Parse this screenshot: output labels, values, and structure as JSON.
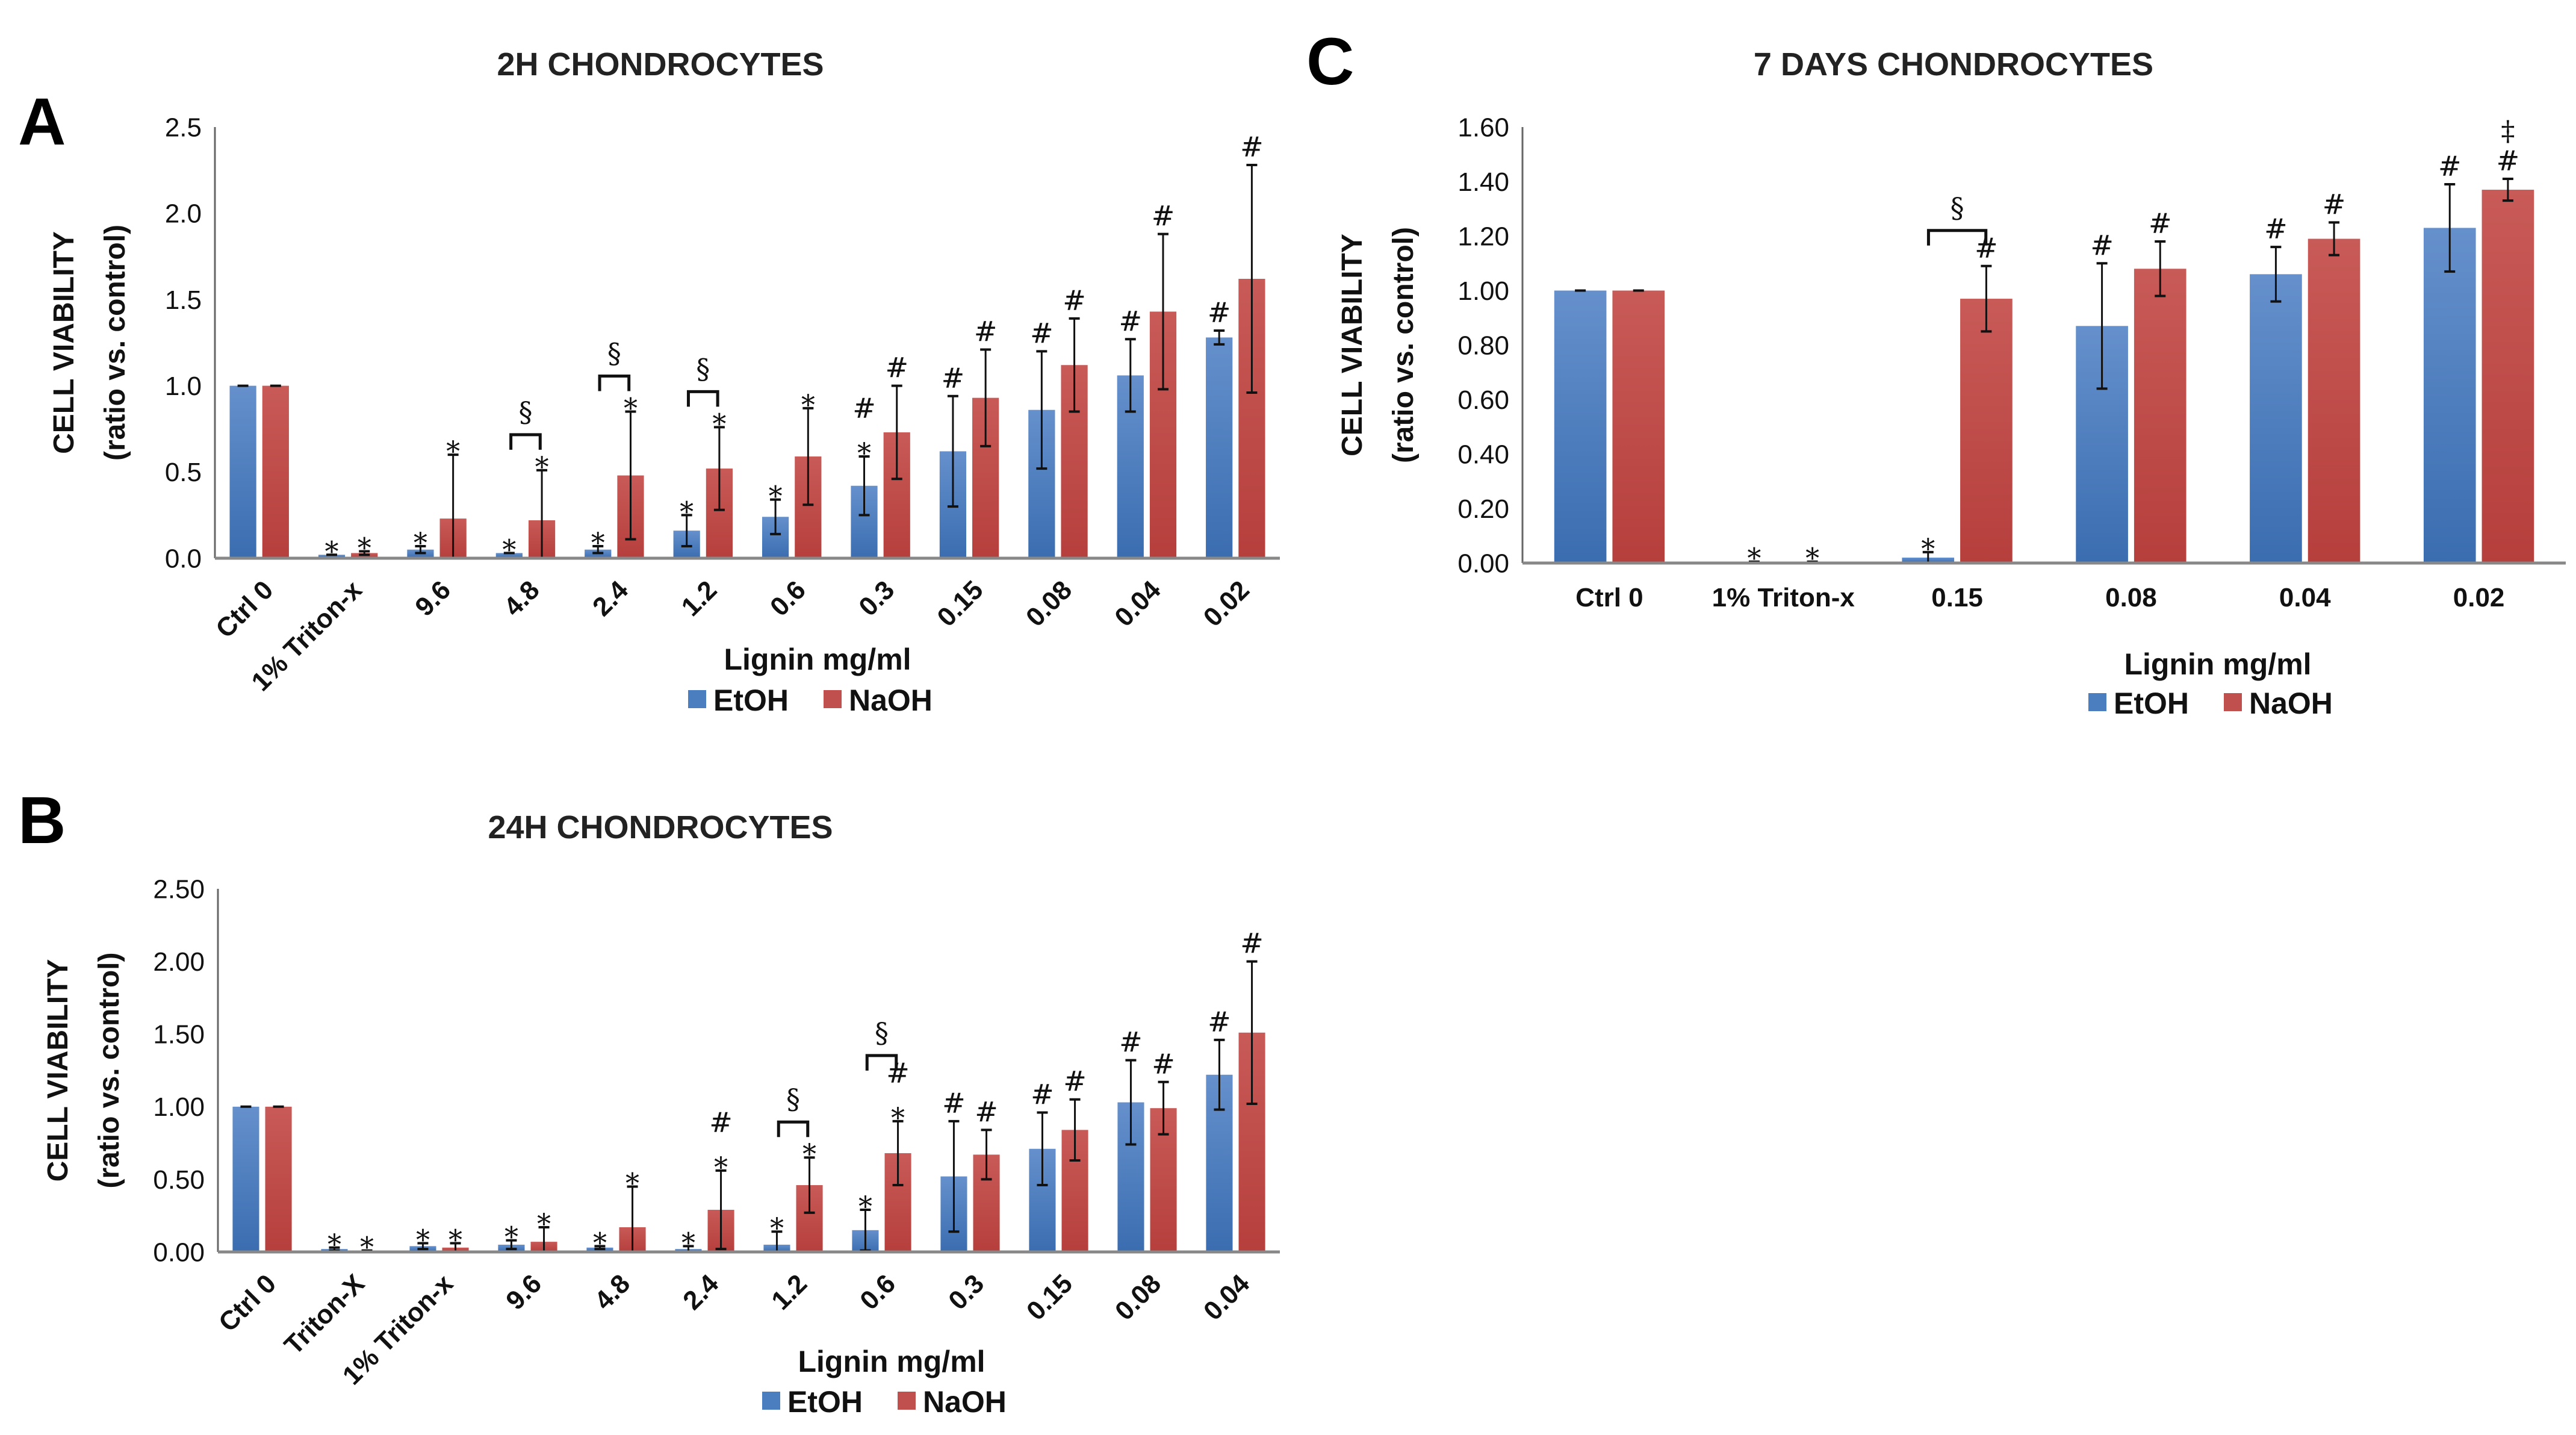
{
  "legend": {
    "etoh": "EtOH",
    "naoh": "NaOH"
  },
  "colors": {
    "etoh": "#4a7ebf",
    "naoh": "#c0504d"
  },
  "chart_data": [
    {
      "panel": "A",
      "type": "bar",
      "title": "2H CHONDROCYTES",
      "ylabel": [
        "CELL VIABILITY",
        "(ratio vs. control)"
      ],
      "xlabel": "Lignin mg/ml",
      "ylim": [
        0,
        2.5
      ],
      "yticks": [
        "0.0",
        "0.5",
        "1.0",
        "1.5",
        "2.0",
        "2.5"
      ],
      "rotate_categories": true,
      "categories": [
        "Ctrl 0",
        "1% Triton-x",
        "9.6",
        "4.8",
        "2.4",
        "1.2",
        "0.6",
        "0.3",
        "0.15",
        "0.08",
        "0.04",
        "0.02"
      ],
      "series": [
        {
          "name": "EtOH",
          "values": [
            1.0,
            0.02,
            0.05,
            0.03,
            0.05,
            0.16,
            0.24,
            0.42,
            0.62,
            0.86,
            1.06,
            1.28
          ],
          "errors": [
            0,
            0,
            0.02,
            0,
            0.02,
            0.09,
            0.1,
            0.17,
            0.32,
            0.34,
            0.21,
            0.04
          ],
          "annotations": [
            [],
            [
              "*"
            ],
            [
              "*"
            ],
            [
              "*"
            ],
            [
              "*"
            ],
            [
              "*"
            ],
            [
              "*"
            ],
            [
              "*",
              "#"
            ],
            [
              "#"
            ],
            [
              "#"
            ],
            [
              "#"
            ],
            [
              "#"
            ]
          ]
        },
        {
          "name": "NaOH",
          "values": [
            1.0,
            0.03,
            0.23,
            0.22,
            0.48,
            0.52,
            0.59,
            0.73,
            0.93,
            1.12,
            1.43,
            1.62
          ],
          "errors": [
            0,
            0.01,
            0.37,
            0.29,
            0.37,
            0.24,
            0.28,
            0.27,
            0.28,
            0.27,
            0.45,
            0.66
          ],
          "annotations": [
            [],
            [
              "*"
            ],
            [
              "*"
            ],
            [
              "*"
            ],
            [
              "*"
            ],
            [
              "*"
            ],
            [
              "*"
            ],
            [
              "#"
            ],
            [
              "#"
            ],
            [
              "#"
            ],
            [
              "#"
            ],
            [
              "#"
            ]
          ]
        }
      ],
      "pair_marks": [
        {
          "category": "4.8",
          "symbol": "§"
        },
        {
          "category": "2.4",
          "symbol": "§"
        },
        {
          "category": "1.2",
          "symbol": "§"
        }
      ]
    },
    {
      "panel": "B",
      "type": "bar",
      "title": "24H CHONDROCYTES",
      "ylabel": [
        "CELL VIABILITY",
        "(ratio vs. control)"
      ],
      "xlabel": "Lignin mg/ml",
      "ylim": [
        0,
        2.5
      ],
      "yticks": [
        "0.00",
        "0.50",
        "1.00",
        "1.50",
        "2.00",
        "2.50"
      ],
      "rotate_categories": true,
      "categories": [
        "Ctrl 0",
        "Triton-X",
        "1% Triton-x",
        "9.6",
        "4.8",
        "2.4",
        "1.2",
        "0.6",
        "0.3",
        "0.15",
        "0.08",
        "0.04"
      ],
      "series": [
        {
          "name": "EtOH",
          "values": [
            1.0,
            0.02,
            0.04,
            0.05,
            0.03,
            0.02,
            0.05,
            0.15,
            0.52,
            0.71,
            1.03,
            1.22
          ],
          "errors": [
            0,
            0.01,
            0.02,
            0.03,
            0.01,
            0.02,
            0.09,
            0.14,
            0.38,
            0.25,
            0.29,
            0.24
          ],
          "annotations": [
            [],
            [
              "*"
            ],
            [
              "*"
            ],
            [
              "*"
            ],
            [
              "*"
            ],
            [
              "*"
            ],
            [
              "*"
            ],
            [
              "*"
            ],
            [
              "#"
            ],
            [
              "#"
            ],
            [
              "#"
            ],
            [
              "#"
            ]
          ]
        },
        {
          "name": "NaOH",
          "values": [
            1.0,
            0.01,
            0.03,
            0.07,
            0.17,
            0.29,
            0.46,
            0.68,
            0.67,
            0.84,
            0.99,
            1.51
          ],
          "errors": [
            0,
            0,
            0.03,
            0.1,
            0.28,
            0.27,
            0.19,
            0.22,
            0.17,
            0.21,
            0.18,
            0.49
          ],
          "annotations": [
            [],
            [
              "*"
            ],
            [
              "*"
            ],
            [
              "*"
            ],
            [
              "*"
            ],
            [
              "*",
              "#"
            ],
            [
              "*"
            ],
            [
              "*",
              "#"
            ],
            [
              "#"
            ],
            [
              "#"
            ],
            [
              "#"
            ],
            [
              "#"
            ]
          ]
        }
      ],
      "pair_marks": [
        {
          "category": "1.2",
          "symbol": "§"
        },
        {
          "category": "0.6",
          "symbol": "§"
        }
      ]
    },
    {
      "panel": "C",
      "type": "bar",
      "title": "7 DAYS CHONDROCYTES",
      "ylabel": [
        "CELL VIABILITY",
        "(ratio vs. control)"
      ],
      "xlabel": "Lignin mg/ml",
      "ylim": [
        0,
        1.6
      ],
      "yticks": [
        "0.00",
        "0.20",
        "0.40",
        "0.60",
        "0.80",
        "1.00",
        "1.20",
        "1.40",
        "1.60"
      ],
      "rotate_categories": false,
      "categories": [
        "Ctrl 0",
        "1% Triton-x",
        "0.15",
        "0.08",
        "0.04",
        "0.02"
      ],
      "series": [
        {
          "name": "EtOH",
          "values": [
            1.0,
            0.005,
            0.02,
            0.87,
            1.06,
            1.23
          ],
          "errors": [
            0,
            0,
            0.02,
            0.23,
            0.1,
            0.16
          ],
          "annotations": [
            [],
            [
              "*"
            ],
            [
              "*"
            ],
            [
              "#"
            ],
            [
              "#"
            ],
            [
              "#"
            ]
          ]
        },
        {
          "name": "NaOH",
          "values": [
            1.0,
            0.005,
            0.97,
            1.08,
            1.19,
            1.37
          ],
          "errors": [
            0,
            0,
            0.12,
            0.1,
            0.06,
            0.04
          ],
          "annotations": [
            [],
            [
              "*"
            ],
            [
              "#"
            ],
            [
              "#"
            ],
            [
              "#"
            ],
            [
              "#",
              "‡"
            ]
          ]
        }
      ],
      "pair_marks": [
        {
          "category": "0.15",
          "symbol": "§"
        }
      ]
    }
  ]
}
